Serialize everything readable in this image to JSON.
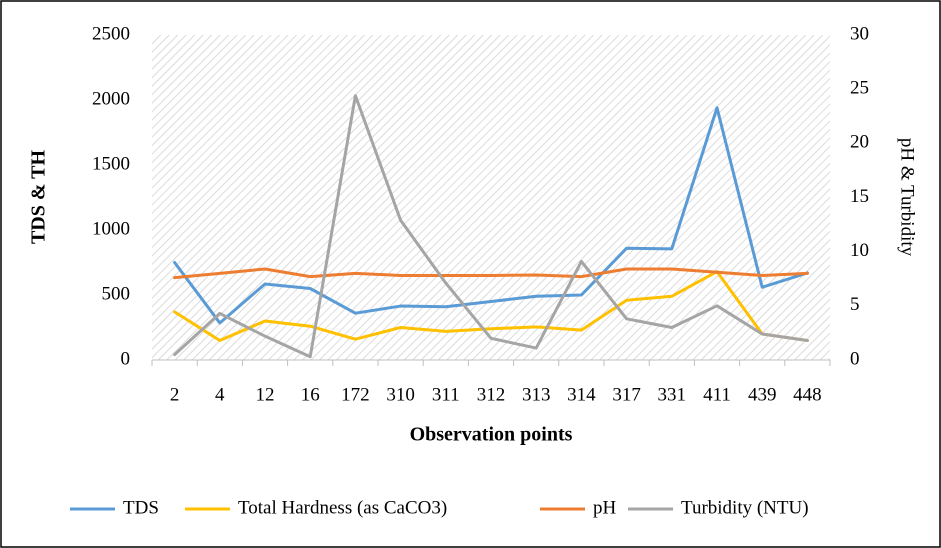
{
  "chart_data": {
    "type": "line",
    "xlabel": "Observation points",
    "ylabel": "TDS & TH",
    "y2label": "pH & Turbidity",
    "categories": [
      "2",
      "4",
      "12",
      "16",
      "172",
      "310",
      "311",
      "312",
      "313",
      "314",
      "317",
      "331",
      "411",
      "439",
      "448"
    ],
    "ylim": [
      0,
      2500
    ],
    "yticks": [
      0,
      500,
      1000,
      1500,
      2000,
      2500
    ],
    "y2lim": [
      0,
      30
    ],
    "y2ticks": [
      0,
      5,
      10,
      15,
      20,
      25,
      30
    ],
    "legend": "bottom",
    "series": [
      {
        "name": "TDS",
        "color": "#5b9bd5",
        "values": [
          750,
          285,
          585,
          550,
          360,
          415,
          410,
          450,
          490,
          500,
          860,
          855,
          1940,
          560,
          670
        ]
      },
      {
        "name": "Total Hardness (as CaCO3)",
        "color": "#ffc000",
        "values": [
          370,
          150,
          300,
          260,
          160,
          250,
          220,
          240,
          255,
          230,
          460,
          490,
          680,
          200,
          150
        ]
      },
      {
        "name": "pH",
        "color": "#ed7d31",
        "axis": "y2",
        "values": [
          7.6,
          8.0,
          8.4,
          7.7,
          8.0,
          7.8,
          7.8,
          7.8,
          7.85,
          7.7,
          8.4,
          8.4,
          8.1,
          7.8,
          8.0
        ]
      },
      {
        "name": "Turbidity (NTU)",
        "color": "#a5a5a5",
        "axis": "y2",
        "values": [
          0.5,
          4.3,
          2.2,
          0.3,
          24.4,
          12.9,
          7.1,
          2.0,
          1.1,
          9.1,
          3.8,
          3.0,
          5.0,
          2.4,
          1.8
        ]
      }
    ]
  }
}
